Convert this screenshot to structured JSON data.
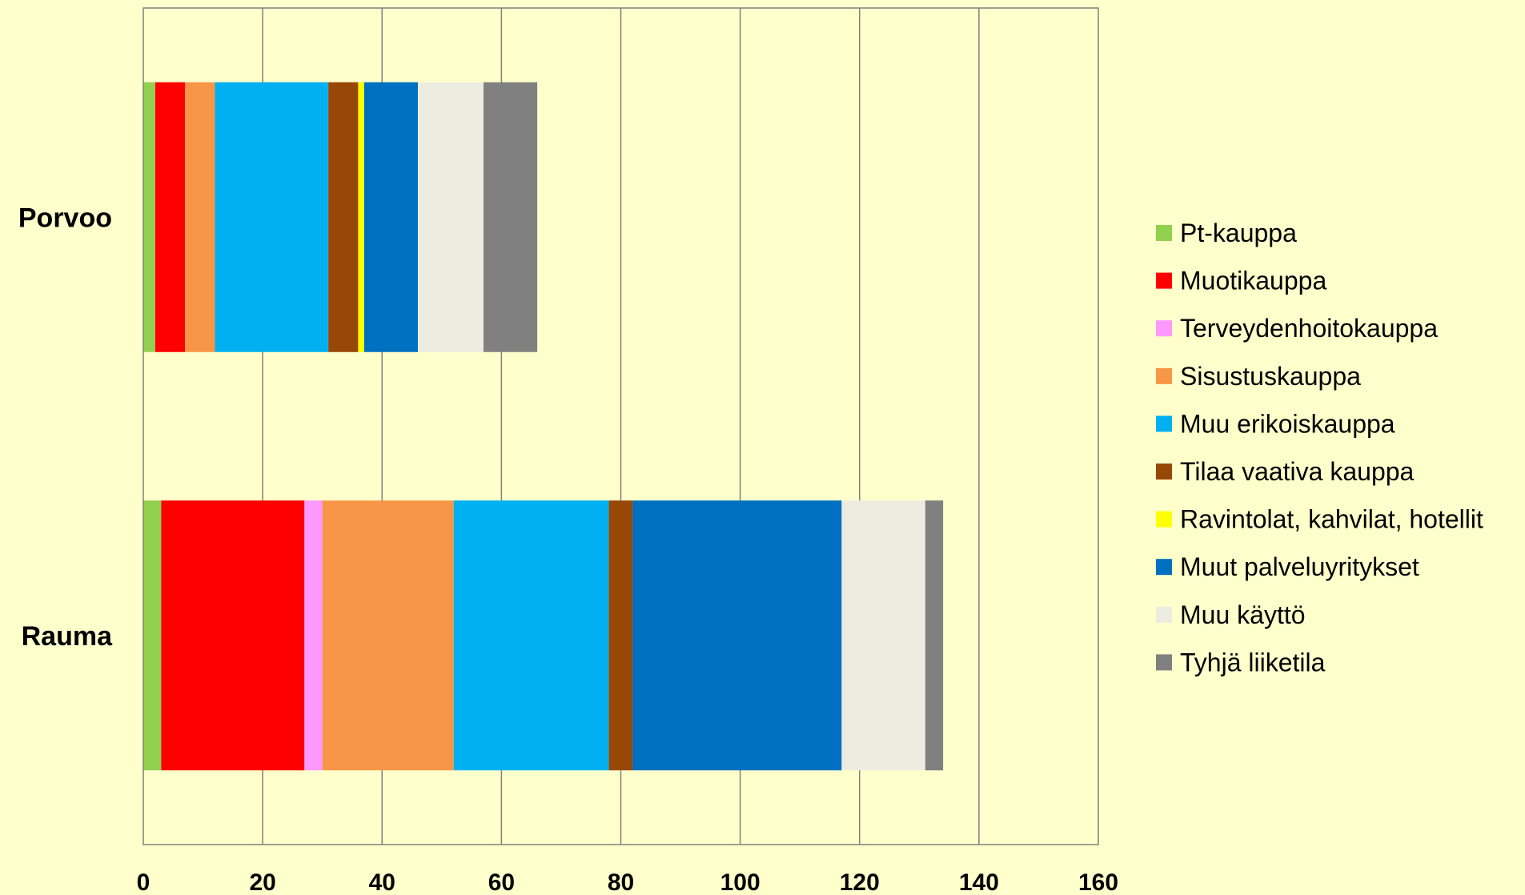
{
  "chart_data": {
    "type": "bar",
    "orientation": "horizontal",
    "stacked": true,
    "title": "",
    "xlabel": "",
    "ylabel": "",
    "xlim": [
      0,
      160
    ],
    "x_ticks": [
      0,
      20,
      40,
      60,
      80,
      100,
      120,
      140,
      160
    ],
    "grid": "vertical",
    "legend_position": "right",
    "categories": [
      "Porvoo",
      "Rauma"
    ],
    "series": [
      {
        "name": "Pt-kauppa",
        "color": "#92D050",
        "values": [
          2,
          3
        ]
      },
      {
        "name": "Muotikauppa",
        "color": "#FF0000",
        "values": [
          5,
          24
        ]
      },
      {
        "name": "Terveydenhoitokauppa",
        "color": "#FF99FF",
        "values": [
          0,
          3
        ]
      },
      {
        "name": "Sisustuskauppa",
        "color": "#F79646",
        "values": [
          5,
          22
        ]
      },
      {
        "name": "Muu erikoiskauppa",
        "color": "#00B0F0",
        "values": [
          19,
          26
        ]
      },
      {
        "name": "Tilaa vaativa kauppa",
        "color": "#974706",
        "values": [
          5,
          4
        ]
      },
      {
        "name": "Ravintolat, kahvilat, hotellit",
        "color": "#FFFF00",
        "values": [
          1,
          0
        ]
      },
      {
        "name": "Muut palveluyritykset",
        "color": "#0070C0",
        "values": [
          9,
          35
        ]
      },
      {
        "name": "Muu käyttö",
        "color": "#EEECE1",
        "values": [
          11,
          14
        ]
      },
      {
        "name": "Tyhjä liiketila",
        "color": "#808080",
        "values": [
          9,
          3
        ]
      }
    ]
  }
}
